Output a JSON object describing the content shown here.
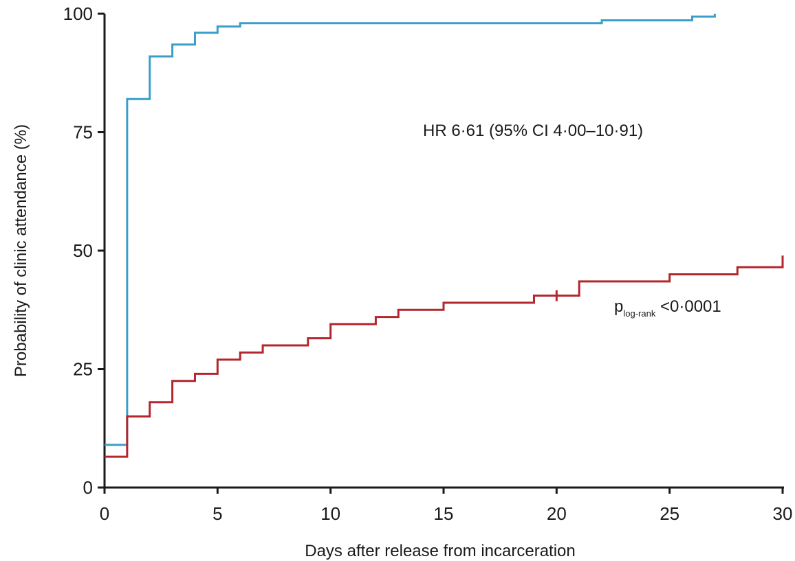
{
  "chart_data": {
    "type": "line",
    "step": true,
    "xlabel": "Days after release from incarceration",
    "ylabel": "Probability of clinic attendance (%)",
    "xlim": [
      0,
      30
    ],
    "ylim": [
      0,
      100
    ],
    "xticks": [
      "0",
      "5",
      "10",
      "15",
      "20",
      "25",
      "30"
    ],
    "yticks": [
      "0",
      "25",
      "50",
      "75",
      "100"
    ],
    "grid": false,
    "legend": "none",
    "series": [
      {
        "color": "#3a9ec9",
        "x": [
          0,
          1,
          2,
          3,
          4,
          5,
          6,
          22,
          26,
          27
        ],
        "y": [
          9,
          82,
          91,
          93.5,
          96,
          97.3,
          98,
          98.6,
          99.4,
          100
        ],
        "censored": []
      },
      {
        "color": "#b3262b",
        "x": [
          0,
          1,
          2,
          3,
          4,
          5,
          6,
          7,
          9,
          10,
          12,
          13,
          15,
          19,
          21,
          25,
          28,
          30
        ],
        "y": [
          6.5,
          15,
          18,
          22.5,
          24,
          27,
          28.5,
          30,
          31.5,
          34.5,
          36,
          37.5,
          39,
          40.5,
          43.5,
          45,
          46.5,
          47.8
        ],
        "censored": [
          {
            "x": 20,
            "y": 40.5
          },
          {
            "x": 30,
            "y": 47.8
          }
        ]
      }
    ],
    "annotations": {
      "hr": "HR 6·61 (95% CI 4·00–10·91)",
      "p_main": "p",
      "p_sub": "log-rank",
      "p_value": " <0·0001"
    }
  }
}
